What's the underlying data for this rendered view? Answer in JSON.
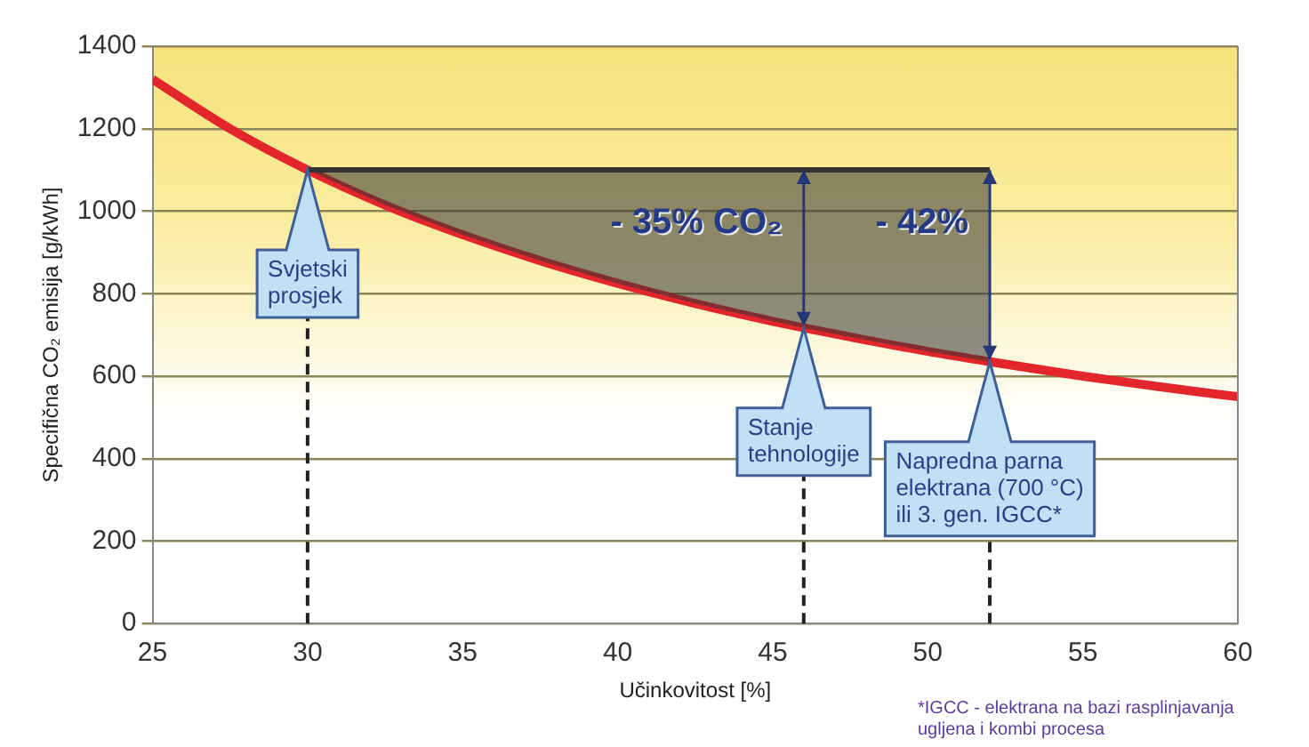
{
  "chart_data": {
    "type": "line",
    "xlabel": "Učinkovitost [%]",
    "ylabel": "Specifična CO₂ emisija [g/kWh]",
    "xlim": [
      25,
      60
    ],
    "xticks": [
      25,
      30,
      35,
      40,
      45,
      50,
      55,
      60
    ],
    "ylim": [
      0,
      1400
    ],
    "yticks": [
      0,
      200,
      400,
      600,
      800,
      1000,
      1200,
      1400
    ],
    "grid": "y",
    "series": [
      {
        "type": "line",
        "color": "#e3262b",
        "x": [
          25,
          27.5,
          30,
          32.5,
          35,
          37.5,
          40,
          42.5,
          45,
          46,
          47.5,
          50,
          52,
          55,
          57.5,
          60
        ],
        "values": [
          1320,
          1200,
          1100,
          1015,
          943,
          880,
          825,
          776,
          733,
          717,
          695,
          660,
          635,
          600,
          574,
          550
        ]
      },
      {
        "type": "line",
        "color": "#333333",
        "x": [
          30,
          32.5,
          35,
          37.5,
          40,
          42.5,
          45,
          46,
          47.5,
          50,
          52
        ],
        "values": [
          1100,
          1100,
          1100,
          1100,
          1100,
          1100,
          1100,
          1100,
          1100,
          1100,
          1100
        ],
        "lower": [
          1100,
          1015,
          943,
          880,
          825,
          776,
          733,
          717,
          695,
          660,
          635
        ],
        "upper": [
          1100,
          1100,
          1100,
          1100,
          1100,
          1100,
          1100,
          1100,
          1100,
          1100,
          1100
        ]
      }
    ],
    "ref_lines": [
      {
        "axis": "x",
        "value": 30,
        "label": "Svjetski\nprosjek",
        "line_style": "dashed"
      },
      {
        "axis": "x",
        "value": 46,
        "label": "Stanje\ntehnologije",
        "line_style": "dashed"
      },
      {
        "axis": "x",
        "value": 52,
        "label": "Napredna parna\nelektrana (700 °C)\nili 3. gen. IGCC*",
        "line_style": "dashed"
      }
    ],
    "annotations": [
      {
        "text": "- 35% CO₂",
        "x": 46,
        "y": 717
      },
      {
        "text": "- 42%",
        "x": 52,
        "y": 635
      },
      "*IGCC - elektrana na bazi rasplinjavanja ugljena i kombi procesa"
    ]
  }
}
